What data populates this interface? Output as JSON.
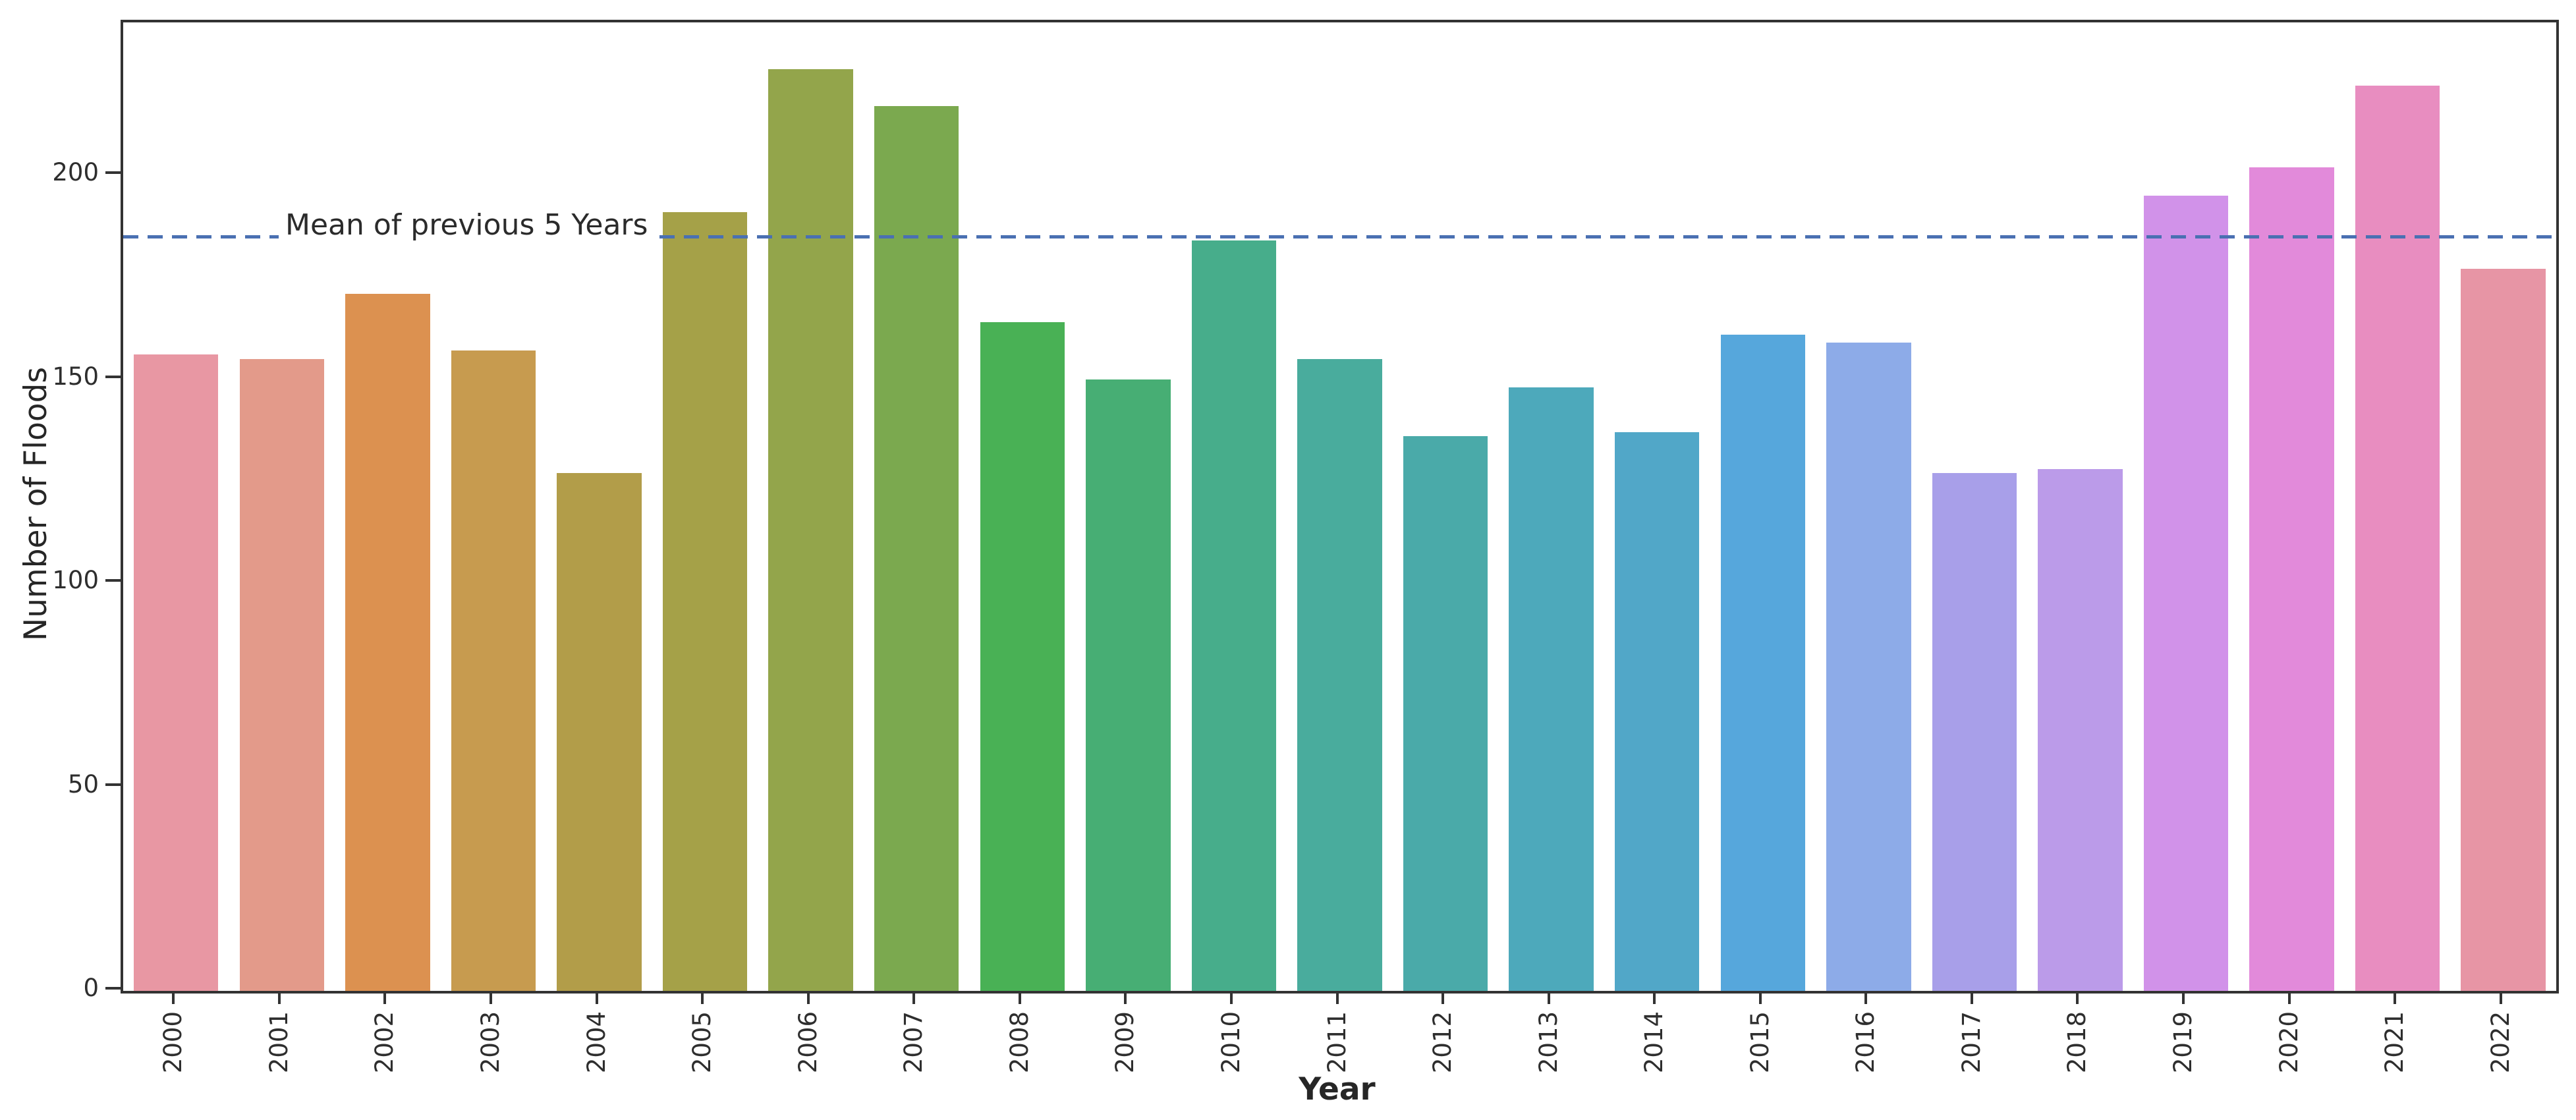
{
  "chart_data": {
    "type": "bar",
    "title": "",
    "xlabel": "Year",
    "ylabel": "Number of Floods",
    "categories": [
      "2000",
      "2001",
      "2002",
      "2003",
      "2004",
      "2005",
      "2006",
      "2007",
      "2008",
      "2009",
      "2010",
      "2011",
      "2012",
      "2013",
      "2014",
      "2015",
      "2016",
      "2017",
      "2018",
      "2019",
      "2020",
      "2021",
      "2022"
    ],
    "values": [
      156,
      155,
      171,
      157,
      127,
      191,
      226,
      217,
      164,
      150,
      184,
      155,
      136,
      148,
      137,
      161,
      159,
      127,
      128,
      195,
      202,
      222,
      177
    ],
    "bar_colors": [
      "#e897a3",
      "#e39a8a",
      "#dc9150",
      "#c79b4f",
      "#b29d49",
      "#a5a148",
      "#93a54b",
      "#7ba94f",
      "#49b155",
      "#47ae74",
      "#47ad8b",
      "#49ac9d",
      "#4aaaa9",
      "#4da9bb",
      "#51a7c8",
      "#56a7dc",
      "#8dabe8",
      "#a89fe9",
      "#bb9be9",
      "#d192e9",
      "#e28ada",
      "#e88dc0",
      "#e795a5"
    ],
    "y_ticks": [
      0,
      50,
      100,
      150,
      200
    ],
    "ylim": [
      0,
      237.5
    ],
    "grid": false,
    "legend": null,
    "reference_line": {
      "value": 184.8,
      "label": "Mean of previous 5 Years",
      "color": "#4a70b2",
      "style": "dashed"
    }
  },
  "annotation": {
    "mean_label": "Mean of previous 5 Years"
  },
  "axes": {
    "xlabel": "Year",
    "ylabel": "Number of Floods"
  }
}
